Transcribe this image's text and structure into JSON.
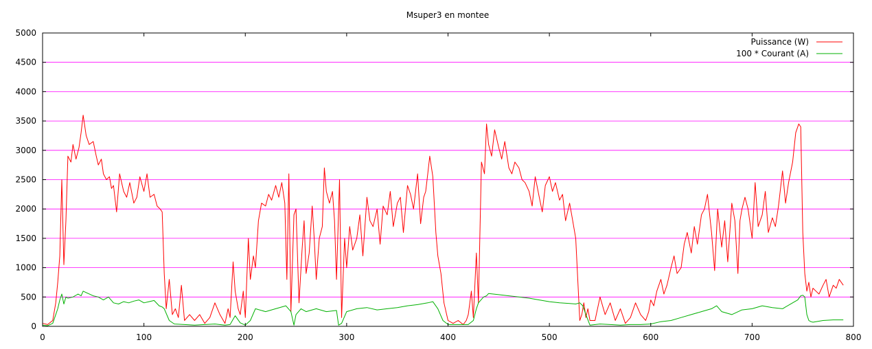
{
  "chart_data": {
    "type": "line",
    "title": "Msuper3 en montee",
    "xlabel": "",
    "ylabel": "",
    "xlim": [
      0,
      800
    ],
    "ylim": [
      0,
      5000
    ],
    "x_ticks": [
      0,
      100,
      200,
      300,
      400,
      500,
      600,
      700,
      800
    ],
    "y_ticks": [
      0,
      500,
      1000,
      1500,
      2000,
      2500,
      3000,
      3500,
      4000,
      4500,
      5000
    ],
    "grid": "horizontal",
    "legend_position": "top-right",
    "series": [
      {
        "name": "Puissance (W)",
        "color": "#ff0000",
        "x": [
          0,
          5,
          10,
          13,
          15,
          17,
          19,
          21,
          23,
          25,
          28,
          30,
          33,
          36,
          38,
          40,
          43,
          46,
          50,
          53,
          55,
          58,
          60,
          63,
          66,
          68,
          70,
          73,
          76,
          80,
          83,
          86,
          90,
          93,
          96,
          100,
          103,
          106,
          110,
          113,
          116,
          118,
          120,
          122,
          125,
          128,
          131,
          134,
          137,
          140,
          145,
          150,
          155,
          160,
          165,
          170,
          175,
          180,
          183,
          185,
          188,
          190,
          193,
          195,
          198,
          200,
          203,
          205,
          208,
          210,
          213,
          216,
          220,
          223,
          226,
          230,
          233,
          236,
          239,
          241,
          243,
          245,
          248,
          250,
          253,
          256,
          258,
          260,
          263,
          266,
          268,
          270,
          273,
          276,
          278,
          280,
          283,
          286,
          288,
          290,
          293,
          295,
          298,
          300,
          303,
          306,
          310,
          313,
          316,
          320,
          323,
          326,
          330,
          333,
          336,
          340,
          343,
          346,
          350,
          353,
          356,
          360,
          363,
          366,
          370,
          373,
          376,
          378,
          380,
          382,
          385,
          388,
          390,
          393,
          396,
          400,
          405,
          410,
          415,
          418,
          420,
          423,
          425,
          428,
          430,
          433,
          436,
          438,
          440,
          443,
          446,
          450,
          453,
          456,
          460,
          463,
          466,
          470,
          473,
          476,
          480,
          483,
          486,
          490,
          493,
          496,
          500,
          503,
          506,
          510,
          513,
          516,
          520,
          523,
          526,
          530,
          532,
          534,
          536,
          538,
          540,
          545,
          550,
          555,
          560,
          565,
          570,
          575,
          580,
          585,
          590,
          595,
          598,
          600,
          603,
          606,
          610,
          613,
          616,
          620,
          623,
          626,
          630,
          633,
          636,
          640,
          643,
          646,
          650,
          653,
          656,
          660,
          663,
          666,
          670,
          673,
          676,
          680,
          683,
          686,
          688,
          690,
          693,
          696,
          700,
          703,
          706,
          710,
          713,
          716,
          720,
          723,
          726,
          730,
          733,
          736,
          740,
          743,
          746,
          748,
          750,
          752,
          754,
          756,
          758,
          760,
          763,
          766,
          770,
          773,
          776,
          780,
          783,
          786,
          790
        ],
        "y": [
          50,
          30,
          100,
          400,
          750,
          1200,
          2500,
          1050,
          1800,
          2900,
          2800,
          3100,
          2850,
          3050,
          3300,
          3600,
          3250,
          3100,
          3150,
          2900,
          2750,
          2850,
          2600,
          2500,
          2550,
          2350,
          2400,
          1950,
          2600,
          2300,
          2200,
          2450,
          2100,
          2200,
          2550,
          2300,
          2600,
          2200,
          2250,
          2050,
          2000,
          1950,
          900,
          300,
          800,
          200,
          300,
          150,
          700,
          100,
          200,
          100,
          200,
          50,
          150,
          400,
          200,
          50,
          300,
          150,
          1100,
          600,
          300,
          200,
          600,
          150,
          1500,
          800,
          1200,
          1000,
          1800,
          2100,
          2050,
          2250,
          2150,
          2400,
          2200,
          2450,
          2100,
          800,
          2600,
          250,
          1900,
          2000,
          400,
          1300,
          1800,
          900,
          1250,
          2050,
          1500,
          800,
          1500,
          1700,
          2700,
          2300,
          2100,
          2300,
          1800,
          800,
          2500,
          150,
          1500,
          1000,
          1700,
          1300,
          1500,
          1900,
          1200,
          2200,
          1800,
          1700,
          2000,
          1400,
          2050,
          1900,
          2300,
          1700,
          2100,
          2200,
          1600,
          2400,
          2250,
          2000,
          2600,
          1750,
          2200,
          2300,
          2600,
          2900,
          2550,
          1600,
          1200,
          900,
          400,
          100,
          50,
          100,
          30,
          100,
          200,
          600,
          150,
          1250,
          400,
          2800,
          2600,
          3450,
          3100,
          2900,
          3350,
          3050,
          2850,
          3150,
          2700,
          2600,
          2800,
          2700,
          2500,
          2450,
          2300,
          2050,
          2550,
          2200,
          1950,
          2400,
          2550,
          2300,
          2450,
          2150,
          2250,
          1800,
          2100,
          1800,
          1500,
          100,
          200,
          400,
          150,
          300,
          100,
          100,
          500,
          200,
          400,
          100,
          300,
          50,
          150,
          400,
          200,
          100,
          250,
          450,
          350,
          600,
          800,
          550,
          700,
          1000,
          1200,
          900,
          1000,
          1400,
          1600,
          1250,
          1700,
          1400,
          1900,
          2000,
          2250,
          1600,
          950,
          2000,
          1350,
          1800,
          1100,
          2100,
          1800,
          900,
          1800,
          2000,
          2200,
          2000,
          1500,
          2450,
          1700,
          1900,
          2300,
          1600,
          1850,
          1700,
          2050,
          2650,
          2100,
          2450,
          2800,
          3300,
          3450,
          3400,
          1600,
          900,
          600,
          750,
          500,
          650,
          600,
          550,
          700,
          800,
          500,
          700,
          650,
          800,
          700
        ]
      },
      {
        "name": "100 * Courant (A)",
        "color": "#00b000",
        "x": [
          0,
          5,
          10,
          13,
          15,
          17,
          19,
          21,
          23,
          25,
          30,
          35,
          38,
          40,
          45,
          50,
          55,
          60,
          65,
          70,
          75,
          80,
          85,
          90,
          95,
          100,
          105,
          110,
          115,
          118,
          120,
          125,
          130,
          140,
          150,
          160,
          170,
          180,
          185,
          190,
          195,
          200,
          205,
          210,
          220,
          230,
          240,
          245,
          248,
          250,
          255,
          260,
          270,
          280,
          290,
          292,
          295,
          300,
          310,
          320,
          330,
          340,
          350,
          360,
          370,
          380,
          385,
          390,
          395,
          400,
          410,
          420,
          425,
          428,
          430,
          435,
          438,
          440,
          450,
          460,
          470,
          480,
          490,
          500,
          510,
          520,
          526,
          530,
          533,
          536,
          540,
          550,
          560,
          570,
          580,
          590,
          600,
          610,
          620,
          630,
          640,
          650,
          660,
          665,
          670,
          680,
          690,
          700,
          710,
          720,
          730,
          740,
          745,
          748,
          750,
          752,
          754,
          756,
          758,
          760,
          770,
          780,
          790
        ],
        "y": [
          20,
          10,
          50,
          200,
          300,
          450,
          550,
          380,
          500,
          480,
          500,
          550,
          520,
          600,
          560,
          520,
          500,
          450,
          500,
          400,
          380,
          420,
          400,
          430,
          450,
          400,
          420,
          440,
          350,
          330,
          300,
          100,
          40,
          30,
          20,
          30,
          40,
          20,
          30,
          180,
          60,
          20,
          100,
          300,
          250,
          300,
          350,
          250,
          20,
          200,
          300,
          250,
          300,
          250,
          270,
          20,
          50,
          250,
          300,
          320,
          280,
          300,
          320,
          350,
          370,
          400,
          420,
          300,
          100,
          30,
          30,
          30,
          100,
          300,
          400,
          500,
          520,
          560,
          540,
          520,
          500,
          480,
          450,
          420,
          400,
          390,
          380,
          400,
          350,
          200,
          20,
          40,
          30,
          20,
          30,
          30,
          40,
          80,
          100,
          150,
          200,
          250,
          300,
          350,
          250,
          200,
          280,
          300,
          350,
          320,
          300,
          400,
          450,
          520,
          530,
          500,
          200,
          100,
          80,
          70,
          100,
          110,
          110
        ]
      }
    ]
  }
}
